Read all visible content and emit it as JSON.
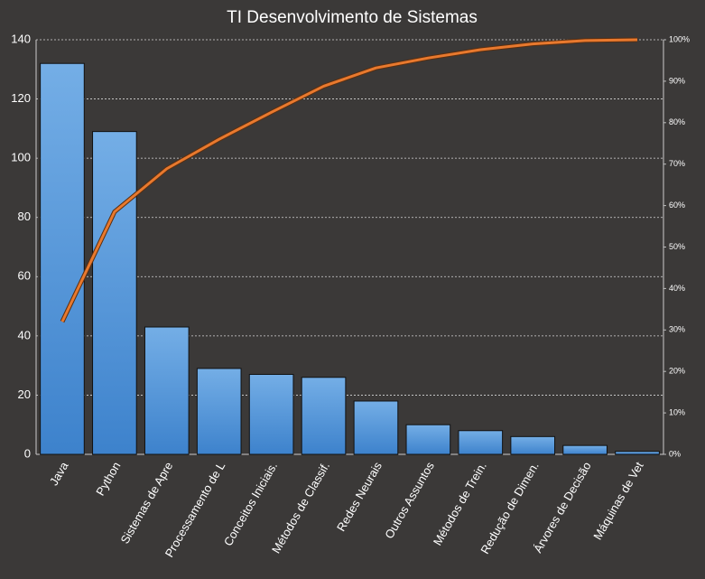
{
  "chart_data": {
    "type": "bar",
    "title": "TI Desenvolvimento  de Sistemas",
    "categories": [
      "Java",
      "Python",
      "Sistemas de Apre",
      "Processamento de L",
      "Conceitos Iniciais.",
      "Métodos de Classif.",
      "Redes Neurais",
      "Outros Assuntos",
      "Métodos de Trein.",
      "Redução de Dimen.",
      "Árvores de Decisão",
      "Máquinas de Vet"
    ],
    "series": [
      {
        "type": "bar",
        "color": "#4a90d9",
        "values": [
          132,
          109,
          43,
          29,
          27,
          26,
          18,
          10,
          8,
          6,
          3,
          1
        ]
      },
      {
        "type": "line",
        "axis": "y2",
        "color": "#e8792e",
        "values": [
          32.0,
          58.5,
          68.9,
          76.0,
          82.5,
          88.8,
          93.2,
          95.6,
          97.6,
          99.0,
          99.8,
          100
        ]
      }
    ],
    "ylim": [
      0,
      140
    ],
    "yticks": [
      0,
      20,
      40,
      60,
      80,
      100,
      120,
      140
    ],
    "y2lim": [
      0,
      100
    ],
    "y2ticks": [
      {
        "value": 0,
        "label": "0%"
      },
      {
        "value": 10,
        "label": "10%"
      },
      {
        "value": 20,
        "label": "20%"
      },
      {
        "value": 30,
        "label": "30%"
      },
      {
        "value": 40,
        "label": "40%"
      },
      {
        "value": 50,
        "label": "50%"
      },
      {
        "value": 60,
        "label": "60%"
      },
      {
        "value": 70,
        "label": "70%"
      },
      {
        "value": 80,
        "label": "80%"
      },
      {
        "value": 90,
        "label": "90%"
      },
      {
        "value": 100,
        "label": "100%"
      }
    ],
    "grid": true
  }
}
